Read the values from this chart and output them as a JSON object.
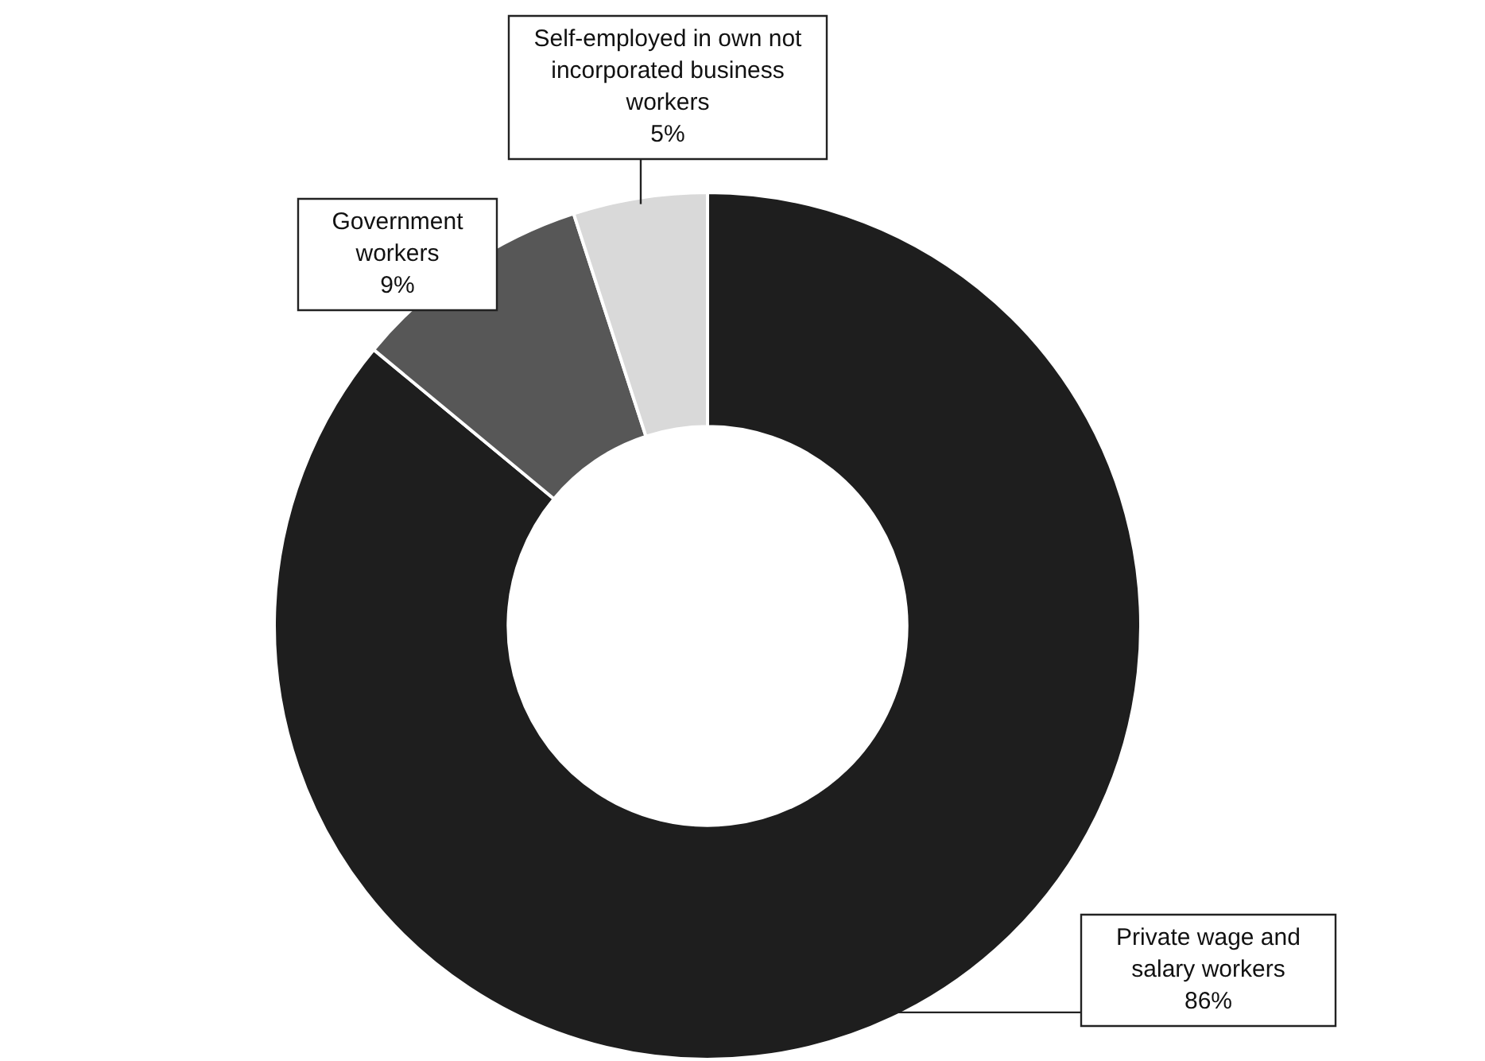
{
  "chart_data": {
    "type": "donut",
    "categories": [
      "Private wage and salary workers",
      "Government workers",
      "Self-employed in own not incorporated business workers"
    ],
    "values": [
      86,
      9,
      5
    ],
    "colors": [
      "#1e1e1e",
      "#575757",
      "#d9d9d9"
    ],
    "value_labels": [
      "86%",
      "9%",
      "5%"
    ],
    "legend": false
  }
}
